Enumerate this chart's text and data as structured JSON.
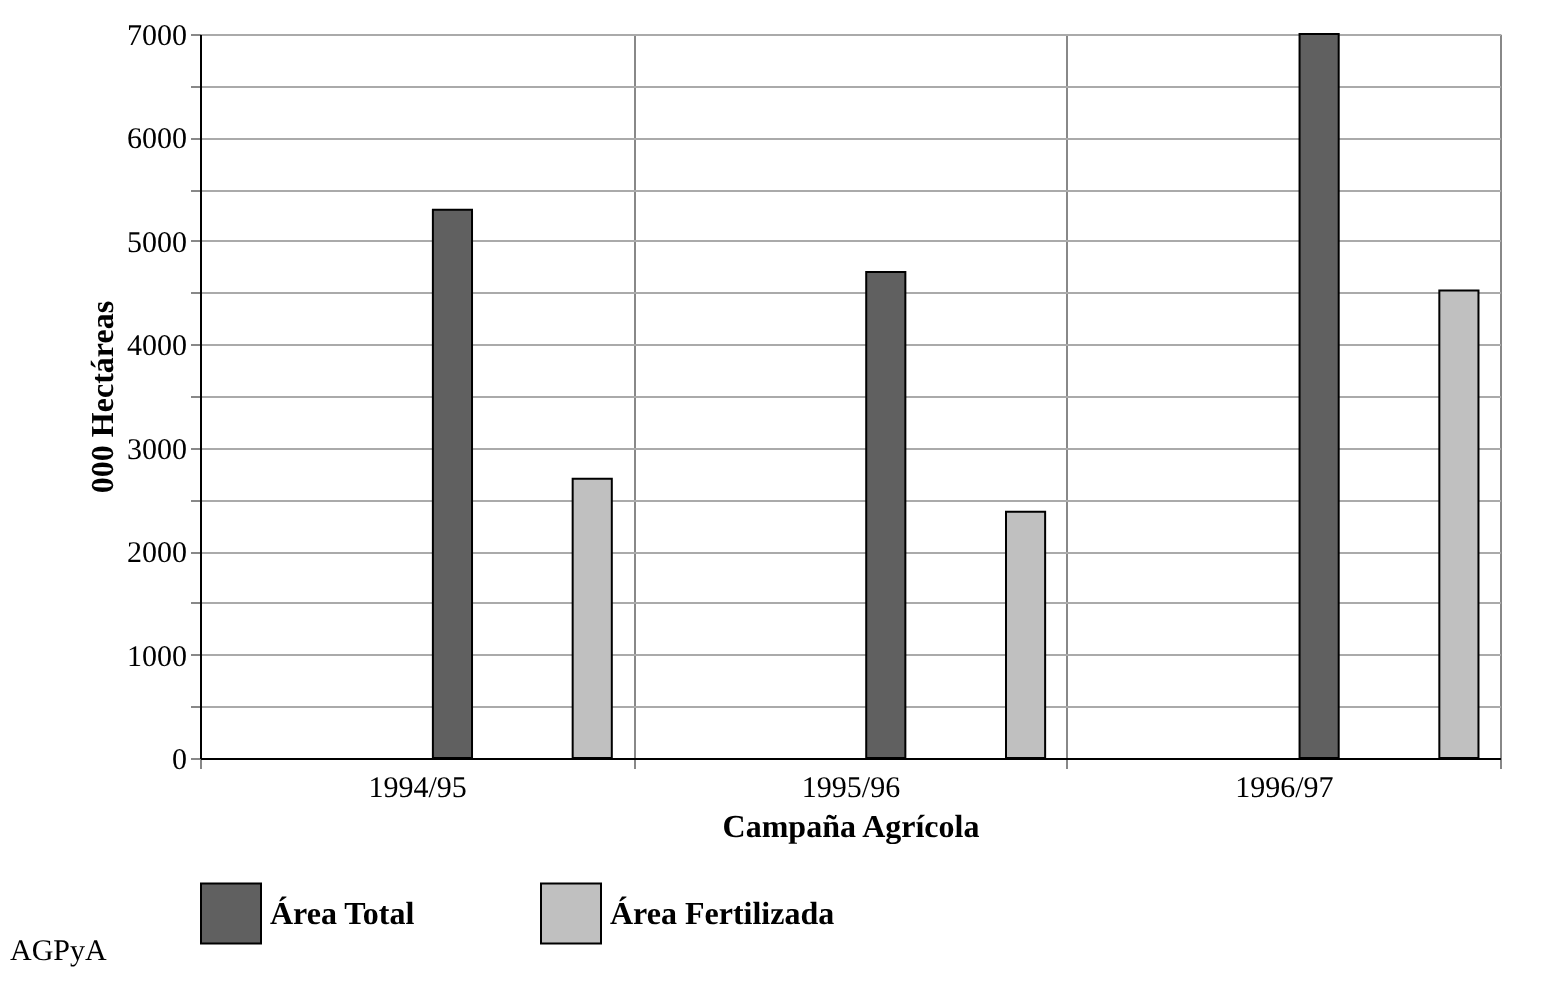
{
  "chart_data": {
    "type": "bar",
    "xlabel": "Campaña Agrícola",
    "ylabel": "000 Hectáreas",
    "categories": [
      "1994/95",
      "1995/96",
      "1996/97"
    ],
    "series": [
      {
        "name": "Área Total",
        "color": "#606060",
        "values": [
          5300,
          4700,
          7000
        ]
      },
      {
        "name": "Área Fertilizada",
        "color": "#c0c0c0",
        "values": [
          2700,
          2380,
          4520
        ]
      }
    ],
    "ylim": [
      0,
      7000
    ],
    "yticks": [
      0,
      {
        "value": 500,
        "label": null
      },
      1000,
      {
        "value": 1500,
        "label": null
      },
      2000,
      {
        "value": 2500,
        "label": null
      },
      3000,
      {
        "value": 3500,
        "label": null
      },
      4000,
      {
        "value": 4500,
        "label": null
      },
      5000,
      {
        "value": 5500,
        "label": null
      },
      6000,
      {
        "value": 6500,
        "label": null
      },
      7000
    ],
    "grid": true,
    "legend": "bottom",
    "annotations": [
      "AGPyA"
    ]
  }
}
